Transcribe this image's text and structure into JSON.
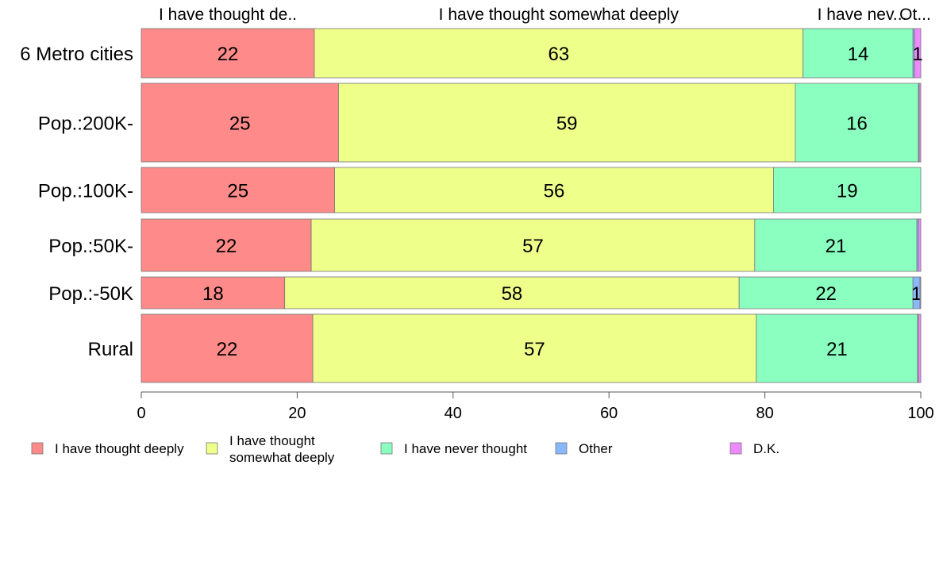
{
  "chart_data": {
    "type": "bar",
    "orientation": "horizontal",
    "stacked": true,
    "categories": [
      "6 Metro cities",
      "Pop.:200K-",
      "Pop.:100K-",
      "Pop.:50K-",
      "Pop.:-50K",
      "Rural"
    ],
    "series": [
      {
        "name": "I have thought deeply",
        "color": "#ff8a8a",
        "values": [
          22.2,
          25.3,
          24.8,
          21.8,
          18.4,
          22.0
        ]
      },
      {
        "name": "I have thought somewhat deeply",
        "color": "#eeff8a",
        "values": [
          62.7,
          58.6,
          56.3,
          56.9,
          58.3,
          56.9
        ]
      },
      {
        "name": "I have never thought",
        "color": "#8affc0",
        "values": [
          14.1,
          15.8,
          18.9,
          20.8,
          22.3,
          20.7
        ]
      },
      {
        "name": "Other",
        "color": "#8ab8ff",
        "values": [
          0.2,
          0.1,
          0.0,
          0.2,
          0.9,
          0.1
        ]
      },
      {
        "name": "D.K.",
        "color": "#ee8aff",
        "values": [
          0.8,
          0.2,
          0.0,
          0.3,
          0.1,
          0.3
        ]
      }
    ],
    "data_labels": [
      [
        "22",
        "63",
        "14",
        "",
        "1"
      ],
      [
        "25",
        "59",
        "16",
        "",
        ""
      ],
      [
        "25",
        "56",
        "19",
        "",
        ""
      ],
      [
        "22",
        "57",
        "21",
        "",
        ""
      ],
      [
        "18",
        "58",
        "22",
        "1",
        ""
      ],
      [
        "22",
        "57",
        "21",
        "",
        ""
      ]
    ],
    "top_labels": [
      "I have thought de..",
      "I have thought somewhat deeply",
      "I have nev...",
      "Ot..."
    ],
    "xlim": [
      0,
      100
    ],
    "xticks": [
      0,
      20,
      40,
      60,
      80,
      100
    ],
    "legend": {
      "placement": "bottom",
      "items": [
        {
          "lines": [
            "I have thought deeply"
          ],
          "color": "#ff8a8a"
        },
        {
          "lines": [
            "I have thought",
            "somewhat deeply"
          ],
          "color": "#eeff8a"
        },
        {
          "lines": [
            "I have never thought"
          ],
          "color": "#8affc0"
        },
        {
          "lines": [
            "Other"
          ],
          "color": "#8ab8ff"
        },
        {
          "lines": [
            "D.K."
          ],
          "color": "#ee8aff"
        }
      ]
    }
  }
}
